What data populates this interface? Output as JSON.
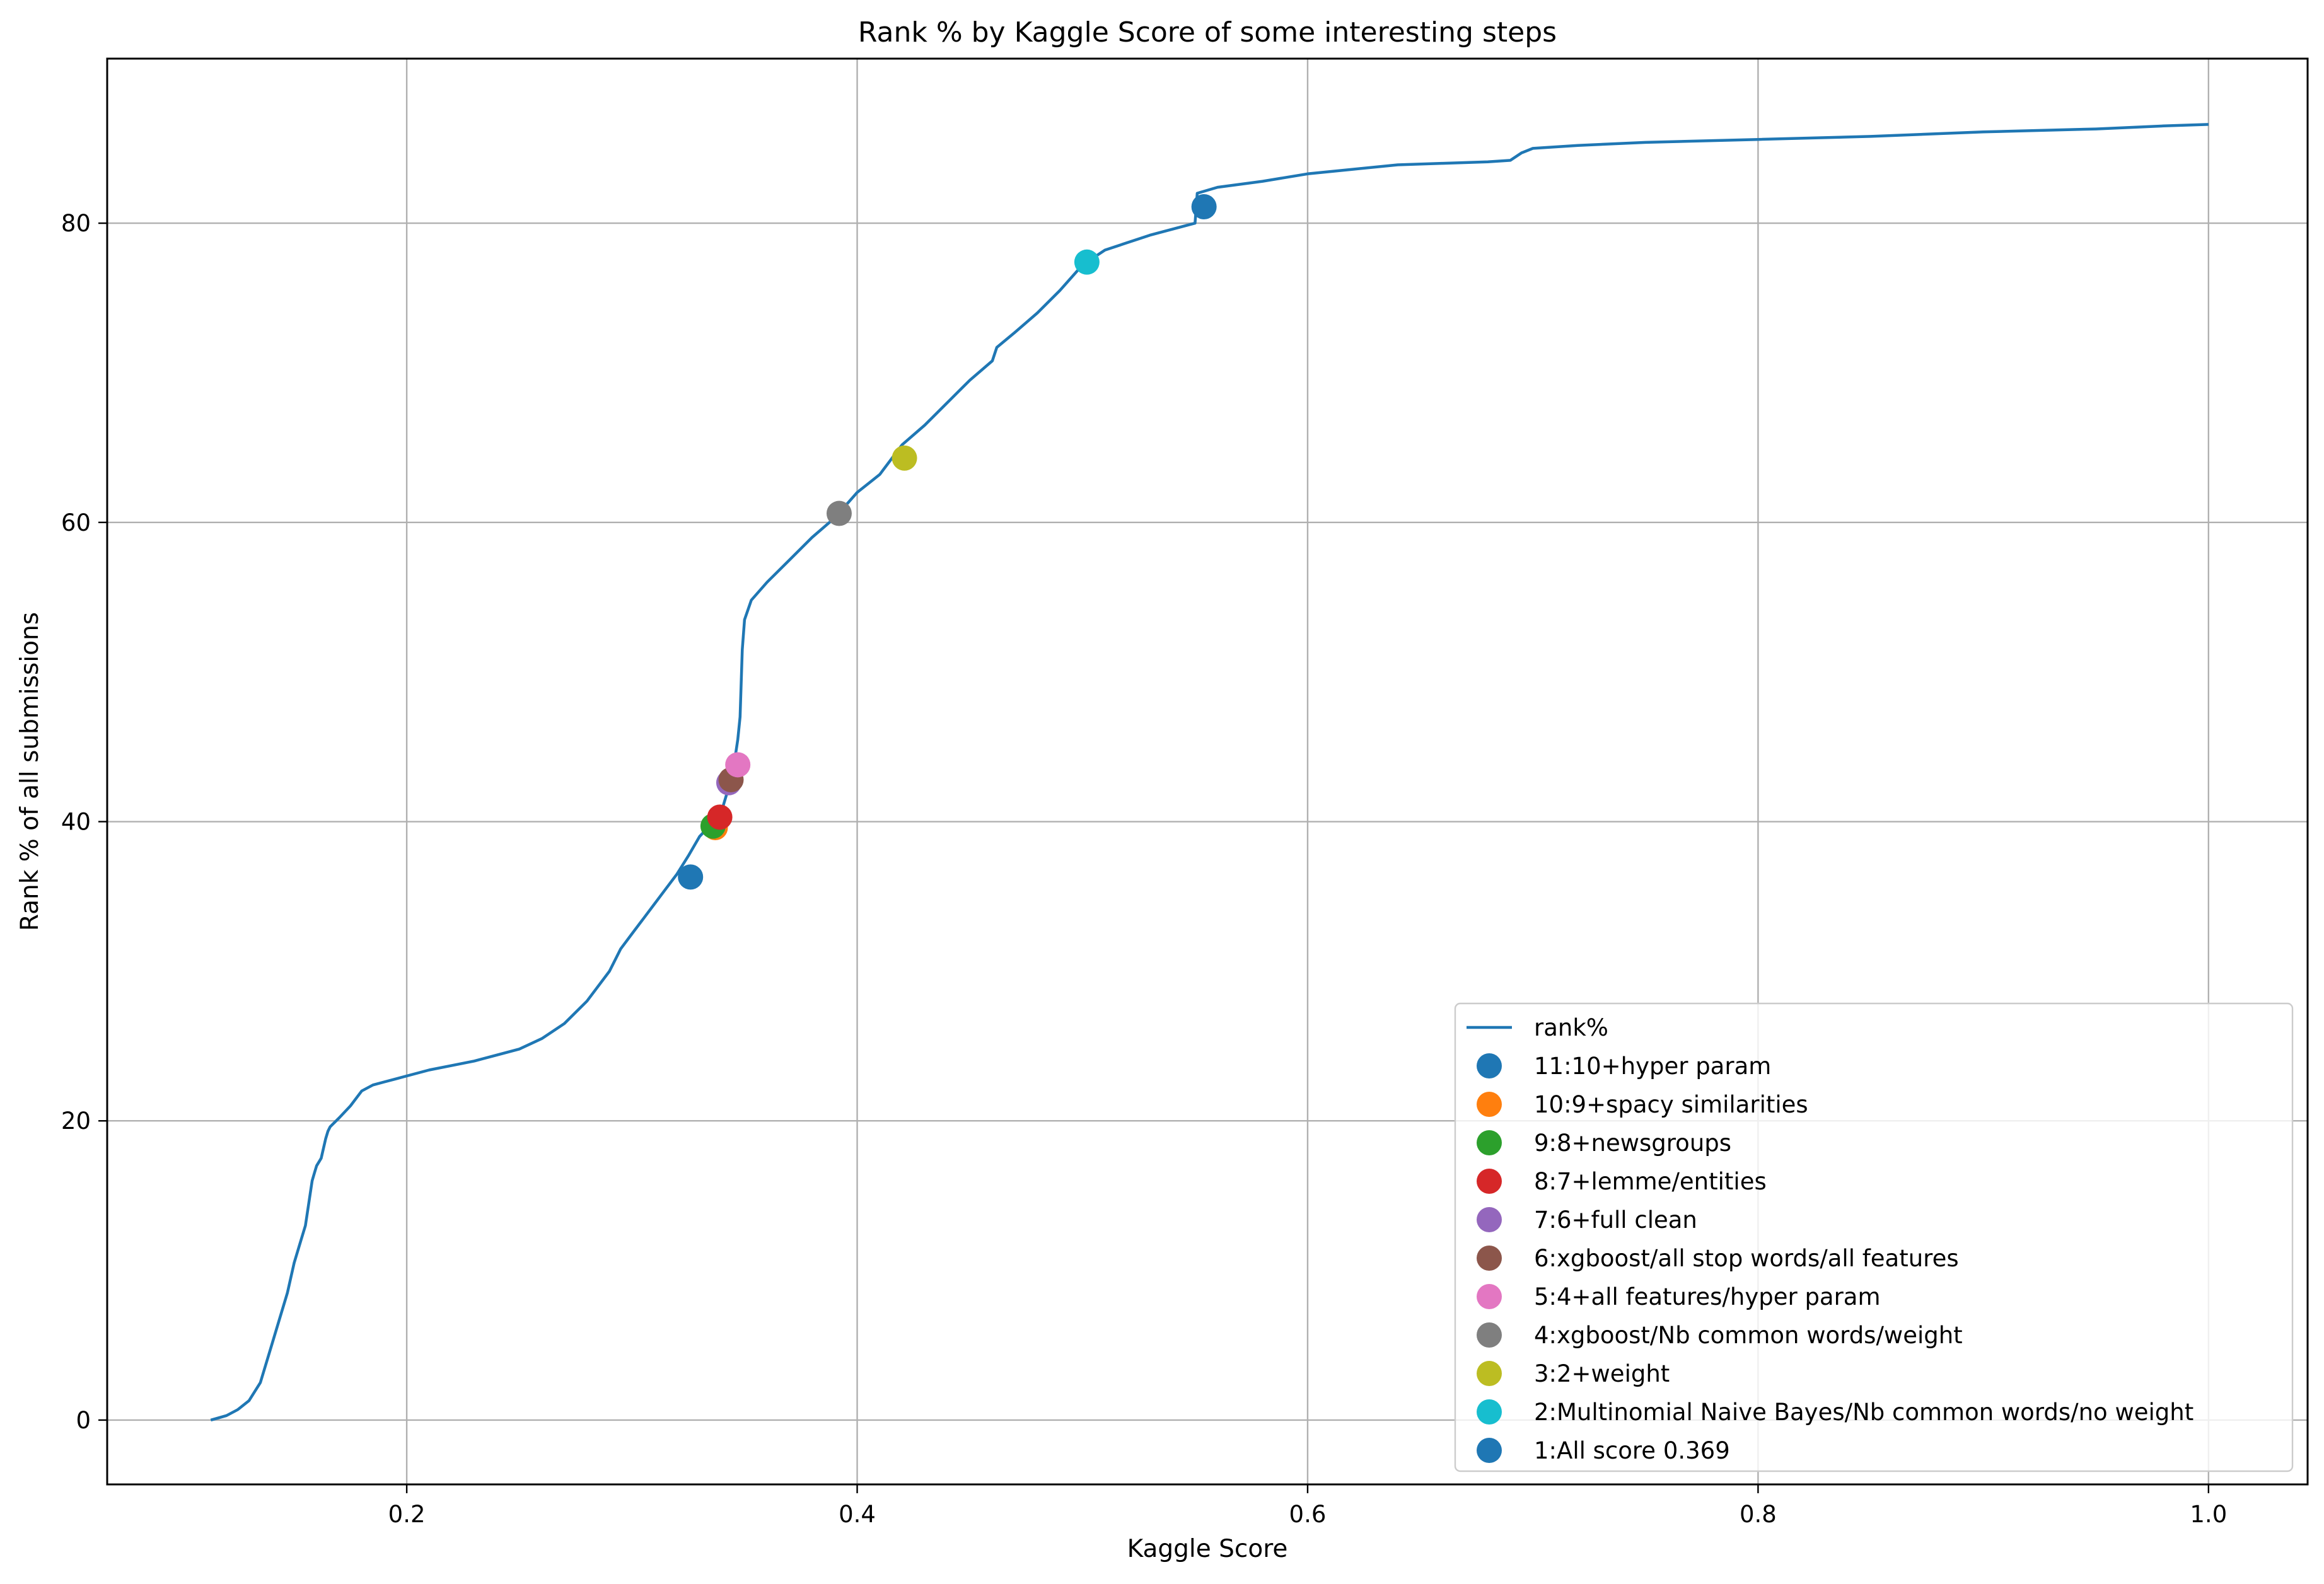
{
  "chart_data": {
    "type": "line",
    "title": "Rank % by Kaggle Score of some interesting steps",
    "xlabel": "Kaggle Score",
    "ylabel": "Rank % of all submissions",
    "xlim": [
      0.067,
      1.044
    ],
    "ylim": [
      -4.3,
      91.0
    ],
    "xticks": [
      0.2,
      0.4,
      0.6,
      0.8,
      1.0
    ],
    "xtick_labels": [
      "0.2",
      "0.4",
      "0.6",
      "0.8",
      "1.0"
    ],
    "yticks": [
      0,
      20,
      40,
      60,
      80
    ],
    "ytick_labels": [
      "0",
      "20",
      "40",
      "60",
      "80"
    ],
    "grid": true,
    "legend_position": "lower-right",
    "line": {
      "name": "rank%",
      "color": "#1f77b4",
      "x": [
        0.113,
        0.12,
        0.125,
        0.13,
        0.135,
        0.14,
        0.143,
        0.147,
        0.15,
        0.153,
        0.155,
        0.158,
        0.159,
        0.16,
        0.162,
        0.164,
        0.165,
        0.166,
        0.17,
        0.175,
        0.18,
        0.185,
        0.19,
        0.195,
        0.2,
        0.21,
        0.22,
        0.23,
        0.24,
        0.25,
        0.26,
        0.27,
        0.28,
        0.29,
        0.295,
        0.3,
        0.305,
        0.31,
        0.315,
        0.32,
        0.325,
        0.33,
        0.335,
        0.34,
        0.342,
        0.345,
        0.347,
        0.348,
        0.349,
        0.35,
        0.353,
        0.36,
        0.37,
        0.38,
        0.39,
        0.4,
        0.41,
        0.42,
        0.43,
        0.44,
        0.45,
        0.46,
        0.462,
        0.47,
        0.48,
        0.49,
        0.5,
        0.51,
        0.52,
        0.53,
        0.54,
        0.55,
        0.551,
        0.56,
        0.58,
        0.6,
        0.62,
        0.64,
        0.66,
        0.68,
        0.69,
        0.695,
        0.7,
        0.72,
        0.75,
        0.8,
        0.85,
        0.9,
        0.95,
        0.98,
        1.0
      ],
      "y": [
        0,
        0.3,
        0.7,
        1.3,
        2.5,
        5,
        6.5,
        8.5,
        10.5,
        12,
        13,
        16,
        16.5,
        17,
        17.5,
        18.8,
        19.3,
        19.6,
        20.2,
        21,
        22,
        22.4,
        22.6,
        22.8,
        23,
        23.4,
        23.7,
        24,
        24.4,
        24.8,
        25.5,
        26.5,
        28,
        30,
        31.5,
        32.5,
        33.5,
        34.5,
        35.5,
        36.5,
        37.7,
        39,
        39.8,
        40.8,
        41.8,
        43.5,
        45.5,
        47,
        51.5,
        53.5,
        54.8,
        56,
        57.5,
        59,
        60.3,
        62,
        63.2,
        65.2,
        66.5,
        68,
        69.5,
        70.8,
        71.7,
        72.7,
        74,
        75.5,
        77.2,
        78.2,
        78.7,
        79.2,
        79.6,
        80,
        82,
        82.4,
        82.8,
        83.3,
        83.6,
        83.9,
        84,
        84.1,
        84.2,
        84.7,
        85,
        85.2,
        85.4,
        85.6,
        85.8,
        86.1,
        86.3,
        86.5,
        86.6
      ],
      "legend_label": "rank%"
    },
    "points": [
      {
        "label": "11:10+hyper param",
        "x": 0.554,
        "y": 81.1,
        "color": "#1f77b4"
      },
      {
        "label": "10:9+spacy similarities",
        "x": 0.337,
        "y": 39.6,
        "color": "#ff7f0e"
      },
      {
        "label": "9:8+newsgroups",
        "x": 0.336,
        "y": 39.7,
        "color": "#2ca02c"
      },
      {
        "label": "8:7+lemme/entities",
        "x": 0.339,
        "y": 40.3,
        "color": "#d62728"
      },
      {
        "label": "7:6+full clean",
        "x": 0.343,
        "y": 42.6,
        "color": "#9467bd"
      },
      {
        "label": "6:xgboost/all stop words/all features",
        "x": 0.344,
        "y": 42.8,
        "color": "#8c564b"
      },
      {
        "label": "5:4+all features/hyper param",
        "x": 0.347,
        "y": 43.8,
        "color": "#e377c2"
      },
      {
        "label": "4:xgboost/Nb common words/weight",
        "x": 0.392,
        "y": 60.6,
        "color": "#7f7f7f"
      },
      {
        "label": "3:2+weight",
        "x": 0.421,
        "y": 64.3,
        "color": "#bcbd22"
      },
      {
        "label": "2:Multinomial Naive Bayes/Nb common words/no weight",
        "x": 0.502,
        "y": 77.4,
        "color": "#17becf"
      },
      {
        "label": "1:All score 0.369",
        "x": 0.326,
        "y": 36.3,
        "color": "#1f77b4"
      }
    ]
  }
}
